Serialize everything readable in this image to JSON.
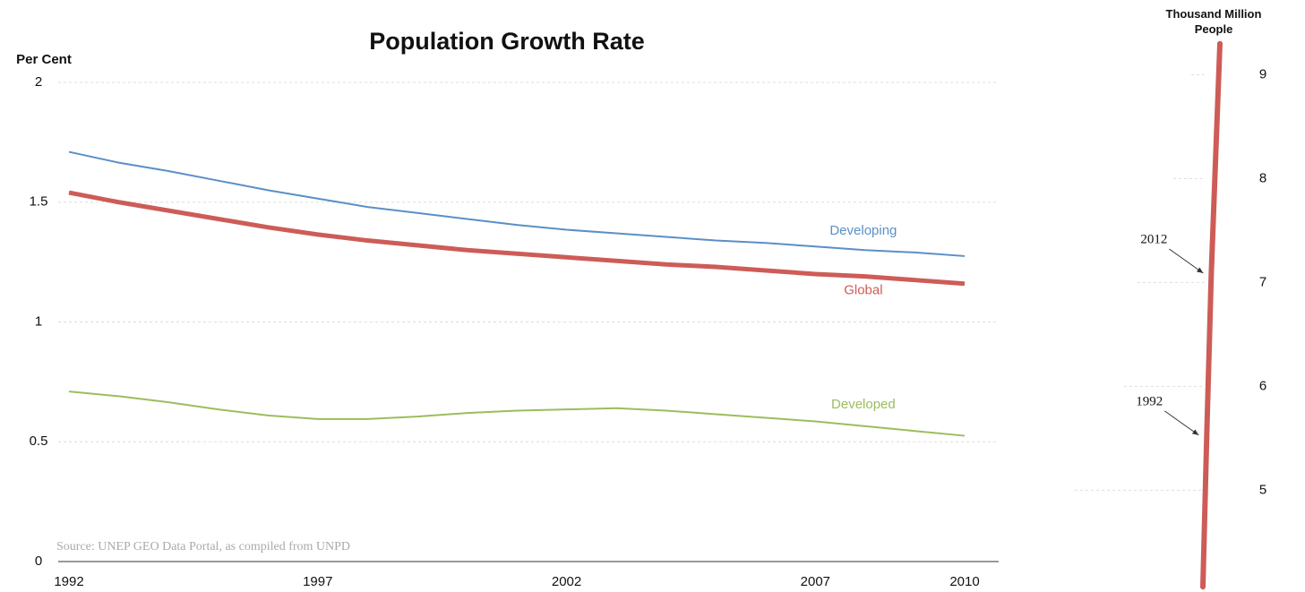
{
  "chart_data": [
    {
      "type": "line",
      "title": "Population Growth Rate",
      "y_label": "Per Cent",
      "annotation": "Source: UNEP GEO Data Portal, as compiled from UNPD",
      "x": [
        1992,
        1993,
        1994,
        1995,
        1996,
        1997,
        1998,
        1999,
        2000,
        2001,
        2002,
        2003,
        2004,
        2005,
        2006,
        2007,
        2008,
        2009,
        2010
      ],
      "xlim": [
        1992,
        2010
      ],
      "xticks": [
        1992,
        1997,
        2002,
        2007,
        2010
      ],
      "ylim": [
        0,
        2
      ],
      "yticks": [
        0,
        0.5,
        1,
        1.5,
        2
      ],
      "grid": true,
      "series": [
        {
          "name": "Developing",
          "color": "#5b8fc7",
          "values": [
            1.71,
            1.665,
            1.63,
            1.59,
            1.55,
            1.515,
            1.48,
            1.455,
            1.43,
            1.405,
            1.385,
            1.37,
            1.355,
            1.34,
            1.33,
            1.315,
            1.3,
            1.29,
            1.275
          ]
        },
        {
          "name": "Global",
          "color": "#cd5c57",
          "values": [
            1.54,
            1.5,
            1.465,
            1.43,
            1.395,
            1.365,
            1.34,
            1.32,
            1.3,
            1.285,
            1.27,
            1.255,
            1.24,
            1.23,
            1.215,
            1.2,
            1.19,
            1.175,
            1.16
          ]
        },
        {
          "name": "Developed",
          "color": "#9cbd5e",
          "values": [
            0.71,
            0.69,
            0.665,
            0.635,
            0.61,
            0.595,
            0.595,
            0.605,
            0.62,
            0.63,
            0.635,
            0.64,
            0.63,
            0.615,
            0.6,
            0.585,
            0.565,
            0.545,
            0.525
          ]
        }
      ]
    },
    {
      "type": "line",
      "y_label": "Thousand Million People",
      "x": [
        1975,
        1992,
        2012,
        2050
      ],
      "xlim": [
        1975,
        2050
      ],
      "ylim": [
        4.02,
        9.72
      ],
      "yticks": [
        5,
        6,
        7,
        8,
        9
      ],
      "grid": true,
      "series": [
        {
          "color": "#cd5c57",
          "values": [
            4.07,
            5.53,
            7.09,
            9.3
          ]
        }
      ],
      "annotations": [
        {
          "text": "2012",
          "x": 2012,
          "y": 7.09
        },
        {
          "text": "1992",
          "x": 1992,
          "y": 5.53
        }
      ]
    }
  ]
}
